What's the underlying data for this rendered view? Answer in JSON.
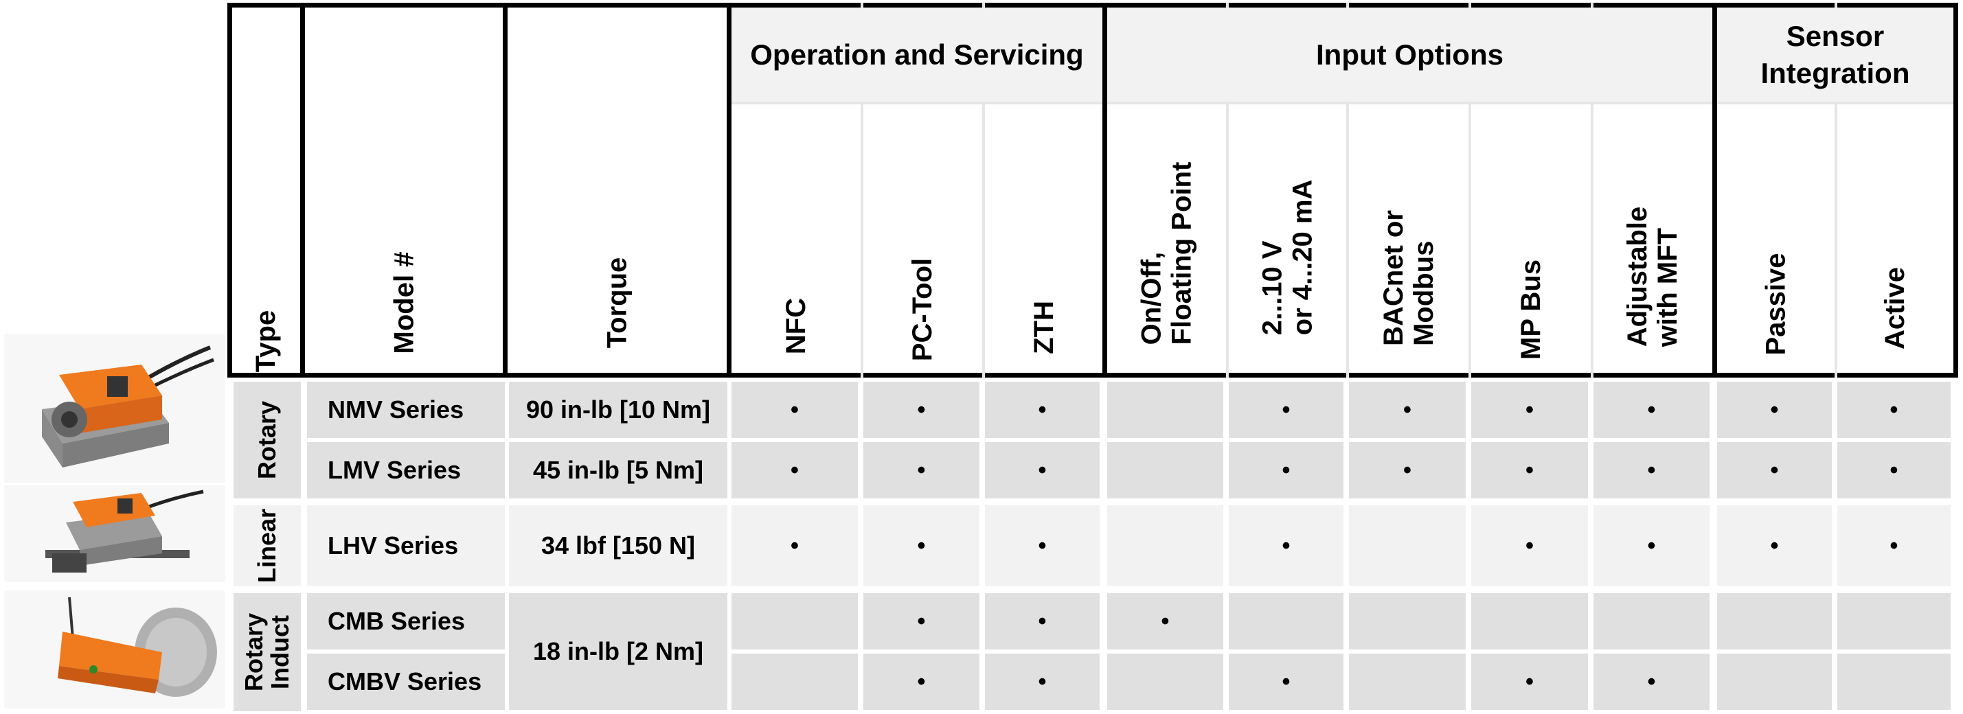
{
  "header": {
    "type": "Type",
    "model": "Model #",
    "torque": "Torque",
    "groups": [
      {
        "label": "Operation and Servicing"
      },
      {
        "label": "Input Options"
      },
      {
        "label": "Sensor\nIntegration"
      }
    ],
    "columns": [
      "NFC",
      "PC-Tool",
      "ZTH",
      "On/Off,\nFloating Point",
      "2...10 V\nor 4...20 mA",
      "BACnet or\nModbus",
      "MP Bus",
      "Adjustable\nwith MFT",
      "Passive",
      "Active"
    ]
  },
  "type_groups": [
    {
      "label": "Rotary"
    },
    {
      "label": "Linear"
    },
    {
      "label": "Rotary\nInduct"
    }
  ],
  "rows": [
    {
      "model": "NMV Series",
      "torque": "90 in-lb [10 Nm]",
      "marks": [
        "•",
        "•",
        "•",
        "",
        "•",
        "•",
        "•",
        "•",
        "•",
        "•"
      ]
    },
    {
      "model": "LMV Series",
      "torque": "45 in-lb [5 Nm]",
      "marks": [
        "•",
        "•",
        "•",
        "",
        "•",
        "•",
        "•",
        "•",
        "•",
        "•"
      ]
    },
    {
      "model": "LHV Series",
      "torque": "34 lbf [150 N]",
      "marks": [
        "•",
        "•",
        "•",
        "",
        "•",
        "",
        "•",
        "•",
        "•",
        "•"
      ]
    },
    {
      "model": "CMB Series",
      "torque": "18 in-lb [2 Nm]",
      "marks": [
        "",
        "•",
        "•",
        "•",
        "",
        "",
        "",
        "",
        "",
        ""
      ]
    },
    {
      "model": "CMBV Series",
      "torque": "",
      "marks": [
        "",
        "•",
        "•",
        "",
        "•",
        "",
        "•",
        "•",
        "",
        ""
      ]
    }
  ],
  "images": [
    {
      "icon": "rotary-actuator-icon",
      "color": "#f07a1e"
    },
    {
      "icon": "linear-actuator-icon",
      "color": "#f07a1e"
    },
    {
      "icon": "induct-actuator-icon",
      "color": "#f07a1e"
    }
  ]
}
